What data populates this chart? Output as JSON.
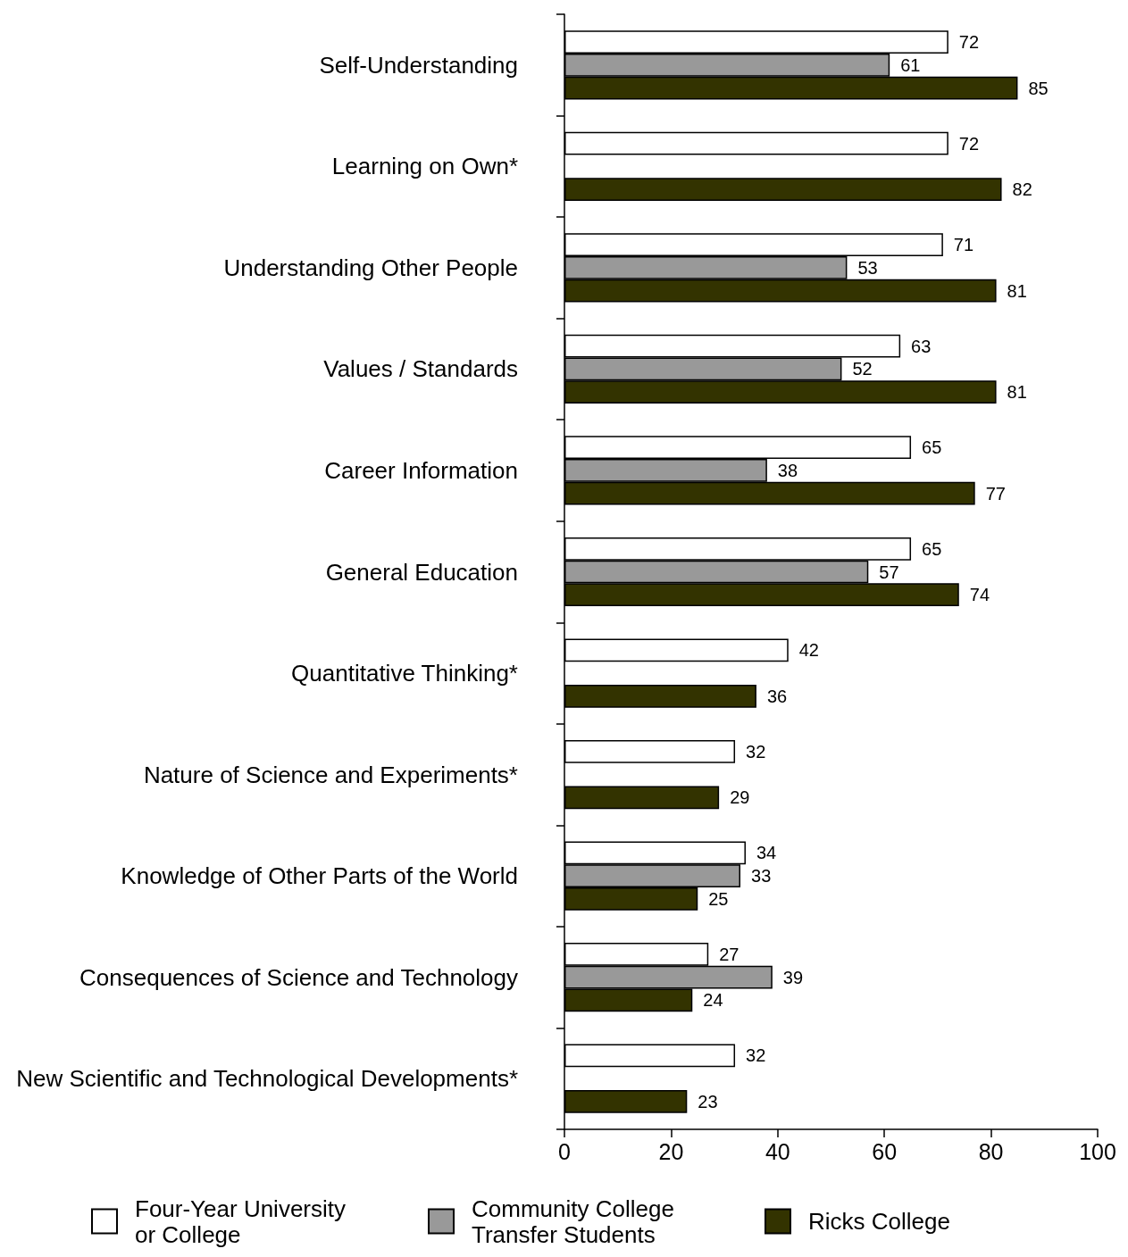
{
  "chart_data": {
    "type": "bar",
    "orientation": "horizontal",
    "categories": [
      "Self-Understanding",
      "Learning on Own*",
      "Understanding Other People",
      "Values / Standards",
      "Career Information",
      "General Education",
      "Quantitative Thinking*",
      "Nature of Science and Experiments*",
      "Knowledge of Other Parts of the World",
      "Consequences of Science and Technology",
      "New Scientific and Technological Developments*"
    ],
    "series": [
      {
        "name": "Four-Year University or College",
        "color": "#ffffff",
        "values": [
          72,
          72,
          71,
          63,
          65,
          65,
          42,
          32,
          34,
          27,
          32
        ]
      },
      {
        "name": "Community College Transfer Students",
        "color": "#999999",
        "values": [
          61,
          null,
          53,
          52,
          38,
          57,
          null,
          null,
          33,
          39,
          null
        ]
      },
      {
        "name": "Ricks College",
        "color": "#333300",
        "values": [
          85,
          82,
          81,
          81,
          77,
          74,
          36,
          29,
          25,
          24,
          23
        ]
      }
    ],
    "xlim": [
      0,
      100
    ],
    "xticks": [
      0,
      20,
      40,
      60,
      80,
      100
    ],
    "data_labels": true,
    "grid": false,
    "legend": "bottom"
  }
}
